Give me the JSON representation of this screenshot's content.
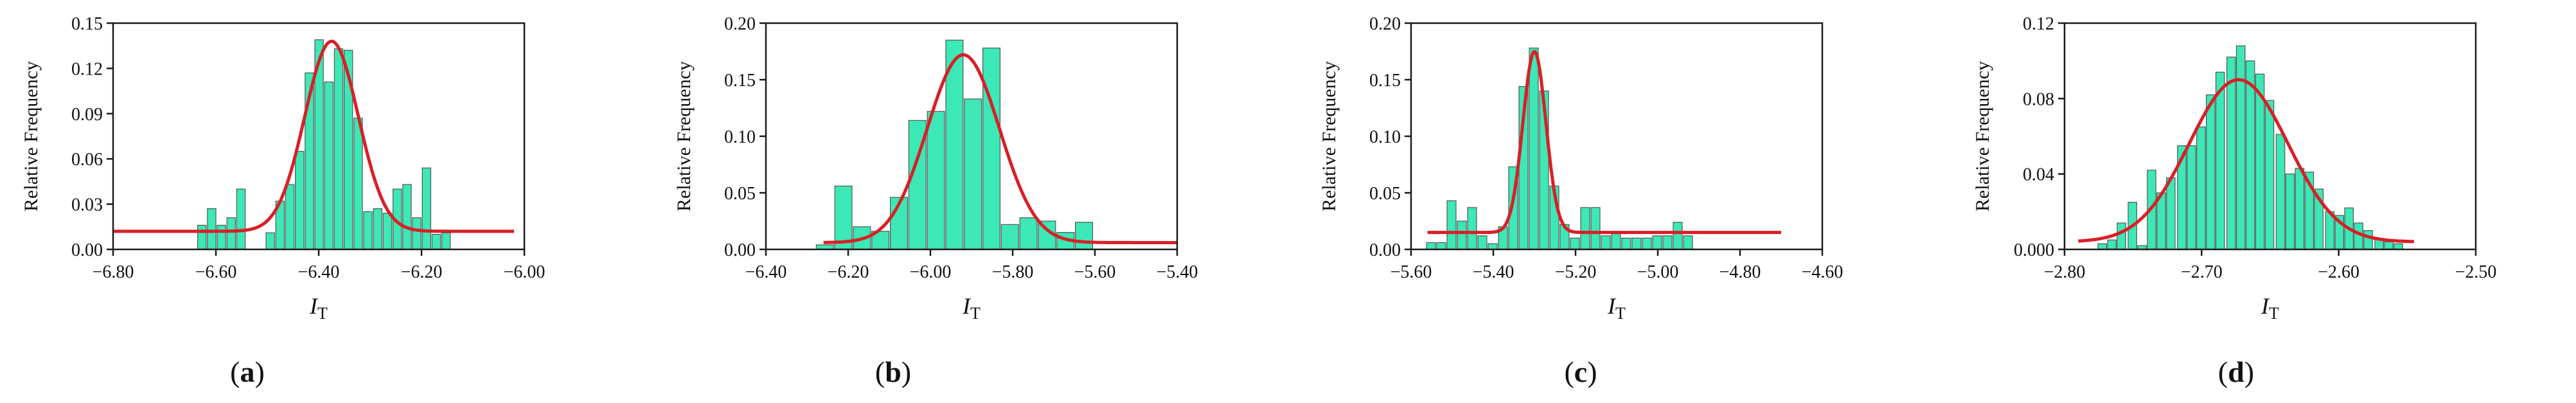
{
  "figure": {
    "panel_labels": [
      "a",
      "b",
      "c",
      "d"
    ]
  },
  "chart_data": [
    {
      "type": "bar",
      "ylabel": "Relative Frequency",
      "xlabel_main": "I",
      "xlabel_sub": "T",
      "xlim": [
        -6.8,
        -6.0
      ],
      "ylim": [
        0,
        0.15
      ],
      "xticks": [
        -6.8,
        -6.6,
        -6.4,
        -6.2,
        -6.0
      ],
      "xtick_labels": [
        "−6.80",
        "−6.60",
        "−6.40",
        "−6.20",
        "−6.00"
      ],
      "yticks": [
        0,
        0.03,
        0.06,
        0.09,
        0.12,
        0.15
      ],
      "ytick_labels": [
        "0.00",
        "0.03",
        "0.06",
        "0.09",
        "0.12",
        "0.15"
      ],
      "bin_width": 0.019,
      "bar_color": "#3ce8b5",
      "curve_color": "#d81f26",
      "bars": [
        [
          -6.626,
          0.016
        ],
        [
          -6.607,
          0.027
        ],
        [
          -6.588,
          0.016
        ],
        [
          -6.569,
          0.021
        ],
        [
          -6.55,
          0.04
        ],
        [
          -6.493,
          0.011
        ],
        [
          -6.474,
          0.032
        ],
        [
          -6.455,
          0.043
        ],
        [
          -6.436,
          0.065
        ],
        [
          -6.417,
          0.117
        ],
        [
          -6.398,
          0.139
        ],
        [
          -6.379,
          0.111
        ],
        [
          -6.36,
          0.133
        ],
        [
          -6.341,
          0.132
        ],
        [
          -6.322,
          0.087
        ],
        [
          -6.303,
          0.025
        ],
        [
          -6.284,
          0.027
        ],
        [
          -6.265,
          0.024
        ],
        [
          -6.246,
          0.04
        ],
        [
          -6.227,
          0.043
        ],
        [
          -6.208,
          0.021
        ],
        [
          -6.189,
          0.054
        ],
        [
          -6.17,
          0.01
        ],
        [
          -6.151,
          0.011
        ]
      ],
      "curve": {
        "y0": 0.012,
        "amp": 0.126,
        "mu": -6.375,
        "sigma": 0.052,
        "x_from": -6.8,
        "x_to": -6.02
      }
    },
    {
      "type": "bar",
      "ylabel": "Relative Frequency",
      "xlabel_main": "I",
      "xlabel_sub": "T",
      "xlim": [
        -6.4,
        -5.4
      ],
      "ylim": [
        0,
        0.2
      ],
      "xticks": [
        -6.4,
        -6.2,
        -6.0,
        -5.8,
        -5.6,
        -5.4
      ],
      "xtick_labels": [
        "−6.40",
        "−6.20",
        "−6.00",
        "−5.80",
        "−5.60",
        "−5.40"
      ],
      "yticks": [
        0,
        0.05,
        0.1,
        0.15,
        0.2
      ],
      "ytick_labels": [
        "0.00",
        "0.05",
        "0.10",
        "0.15",
        "0.20"
      ],
      "bin_width": 0.045,
      "bar_color": "#3ce8b5",
      "curve_color": "#d81f26",
      "bars": [
        [
          -6.255,
          0.004
        ],
        [
          -6.21,
          0.056
        ],
        [
          -6.165,
          0.02
        ],
        [
          -6.12,
          0.016
        ],
        [
          -6.075,
          0.046
        ],
        [
          -6.03,
          0.114
        ],
        [
          -5.985,
          0.122
        ],
        [
          -5.94,
          0.185
        ],
        [
          -5.895,
          0.133
        ],
        [
          -5.85,
          0.178
        ],
        [
          -5.805,
          0.022
        ],
        [
          -5.76,
          0.028
        ],
        [
          -5.715,
          0.025
        ],
        [
          -5.67,
          0.015
        ],
        [
          -5.625,
          0.024
        ]
      ],
      "curve": {
        "y0": 0.006,
        "amp": 0.166,
        "mu": -5.92,
        "sigma": 0.088,
        "x_from": -6.26,
        "x_to": -5.4
      }
    },
    {
      "type": "bar",
      "ylabel": "Relative Frequency",
      "xlabel_main": "I",
      "xlabel_sub": "T",
      "xlim": [
        -5.6,
        -4.6
      ],
      "ylim": [
        0,
        0.2
      ],
      "xticks": [
        -5.6,
        -5.4,
        -5.2,
        -5.0,
        -4.8,
        -4.6
      ],
      "xtick_labels": [
        "−5.60",
        "−5.40",
        "−5.20",
        "−5.00",
        "−4.80",
        "−4.60"
      ],
      "yticks": [
        0,
        0.05,
        0.1,
        0.15,
        0.2
      ],
      "ytick_labels": [
        "0.00",
        "0.05",
        "0.10",
        "0.15",
        "0.20"
      ],
      "bin_width": 0.025,
      "bar_color": "#3ce8b5",
      "curve_color": "#d81f26",
      "bars": [
        [
          -5.55,
          0.006
        ],
        [
          -5.525,
          0.006
        ],
        [
          -5.5,
          0.043
        ],
        [
          -5.475,
          0.025
        ],
        [
          -5.45,
          0.037
        ],
        [
          -5.425,
          0.012
        ],
        [
          -5.4,
          0.005
        ],
        [
          -5.375,
          0.02
        ],
        [
          -5.35,
          0.073
        ],
        [
          -5.325,
          0.144
        ],
        [
          -5.3,
          0.178
        ],
        [
          -5.275,
          0.14
        ],
        [
          -5.25,
          0.056
        ],
        [
          -5.225,
          0.022
        ],
        [
          -5.2,
          0.01
        ],
        [
          -5.175,
          0.037
        ],
        [
          -5.15,
          0.037
        ],
        [
          -5.125,
          0.012
        ],
        [
          -5.1,
          0.014
        ],
        [
          -5.075,
          0.01
        ],
        [
          -5.05,
          0.01
        ],
        [
          -5.025,
          0.01
        ],
        [
          -5.0,
          0.012
        ],
        [
          -4.975,
          0.012
        ],
        [
          -4.95,
          0.024
        ],
        [
          -4.925,
          0.012
        ]
      ],
      "curve": {
        "y0": 0.015,
        "amp": 0.16,
        "mu": -5.3,
        "sigma": 0.028,
        "x_from": -5.56,
        "x_to": -4.7
      }
    },
    {
      "type": "bar",
      "ylabel": "Relative Frequency",
      "xlabel_main": "I",
      "xlabel_sub": "T",
      "xlim": [
        -2.8,
        -2.5
      ],
      "ylim": [
        0,
        0.12
      ],
      "xticks": [
        -2.8,
        -2.7,
        -2.6,
        -2.5
      ],
      "xtick_labels": [
        "−2.80",
        "−2.70",
        "−2.60",
        "−2.50"
      ],
      "yticks": [
        0,
        0.04,
        0.08,
        0.12
      ],
      "ytick_labels": [
        "0.000",
        "0.04",
        "0.08",
        "0.12"
      ],
      "bin_width": 0.0072,
      "bar_color": "#3ce8b5",
      "curve_color": "#d81f26",
      "bars": [
        [
          -2.772,
          0.003
        ],
        [
          -2.765,
          0.005
        ],
        [
          -2.758,
          0.014
        ],
        [
          -2.75,
          0.025
        ],
        [
          -2.743,
          0.002
        ],
        [
          -2.736,
          0.042
        ],
        [
          -2.729,
          0.03
        ],
        [
          -2.722,
          0.038
        ],
        [
          -2.714,
          0.055
        ],
        [
          -2.707,
          0.055
        ],
        [
          -2.7,
          0.065
        ],
        [
          -2.693,
          0.082
        ],
        [
          -2.686,
          0.094
        ],
        [
          -2.678,
          0.102
        ],
        [
          -2.671,
          0.108
        ],
        [
          -2.664,
          0.1
        ],
        [
          -2.657,
          0.093
        ],
        [
          -2.65,
          0.079
        ],
        [
          -2.642,
          0.061
        ],
        [
          -2.635,
          0.04
        ],
        [
          -2.628,
          0.043
        ],
        [
          -2.621,
          0.041
        ],
        [
          -2.614,
          0.032
        ],
        [
          -2.606,
          0.02
        ],
        [
          -2.599,
          0.018
        ],
        [
          -2.592,
          0.022
        ],
        [
          -2.585,
          0.014
        ],
        [
          -2.578,
          0.01
        ],
        [
          -2.57,
          0.005
        ],
        [
          -2.563,
          0.004
        ],
        [
          -2.556,
          0.003
        ]
      ],
      "curve": {
        "y0": 0.004,
        "amp": 0.086,
        "mu": -2.673,
        "sigma": 0.036,
        "x_from": -2.79,
        "x_to": -2.545
      }
    }
  ]
}
